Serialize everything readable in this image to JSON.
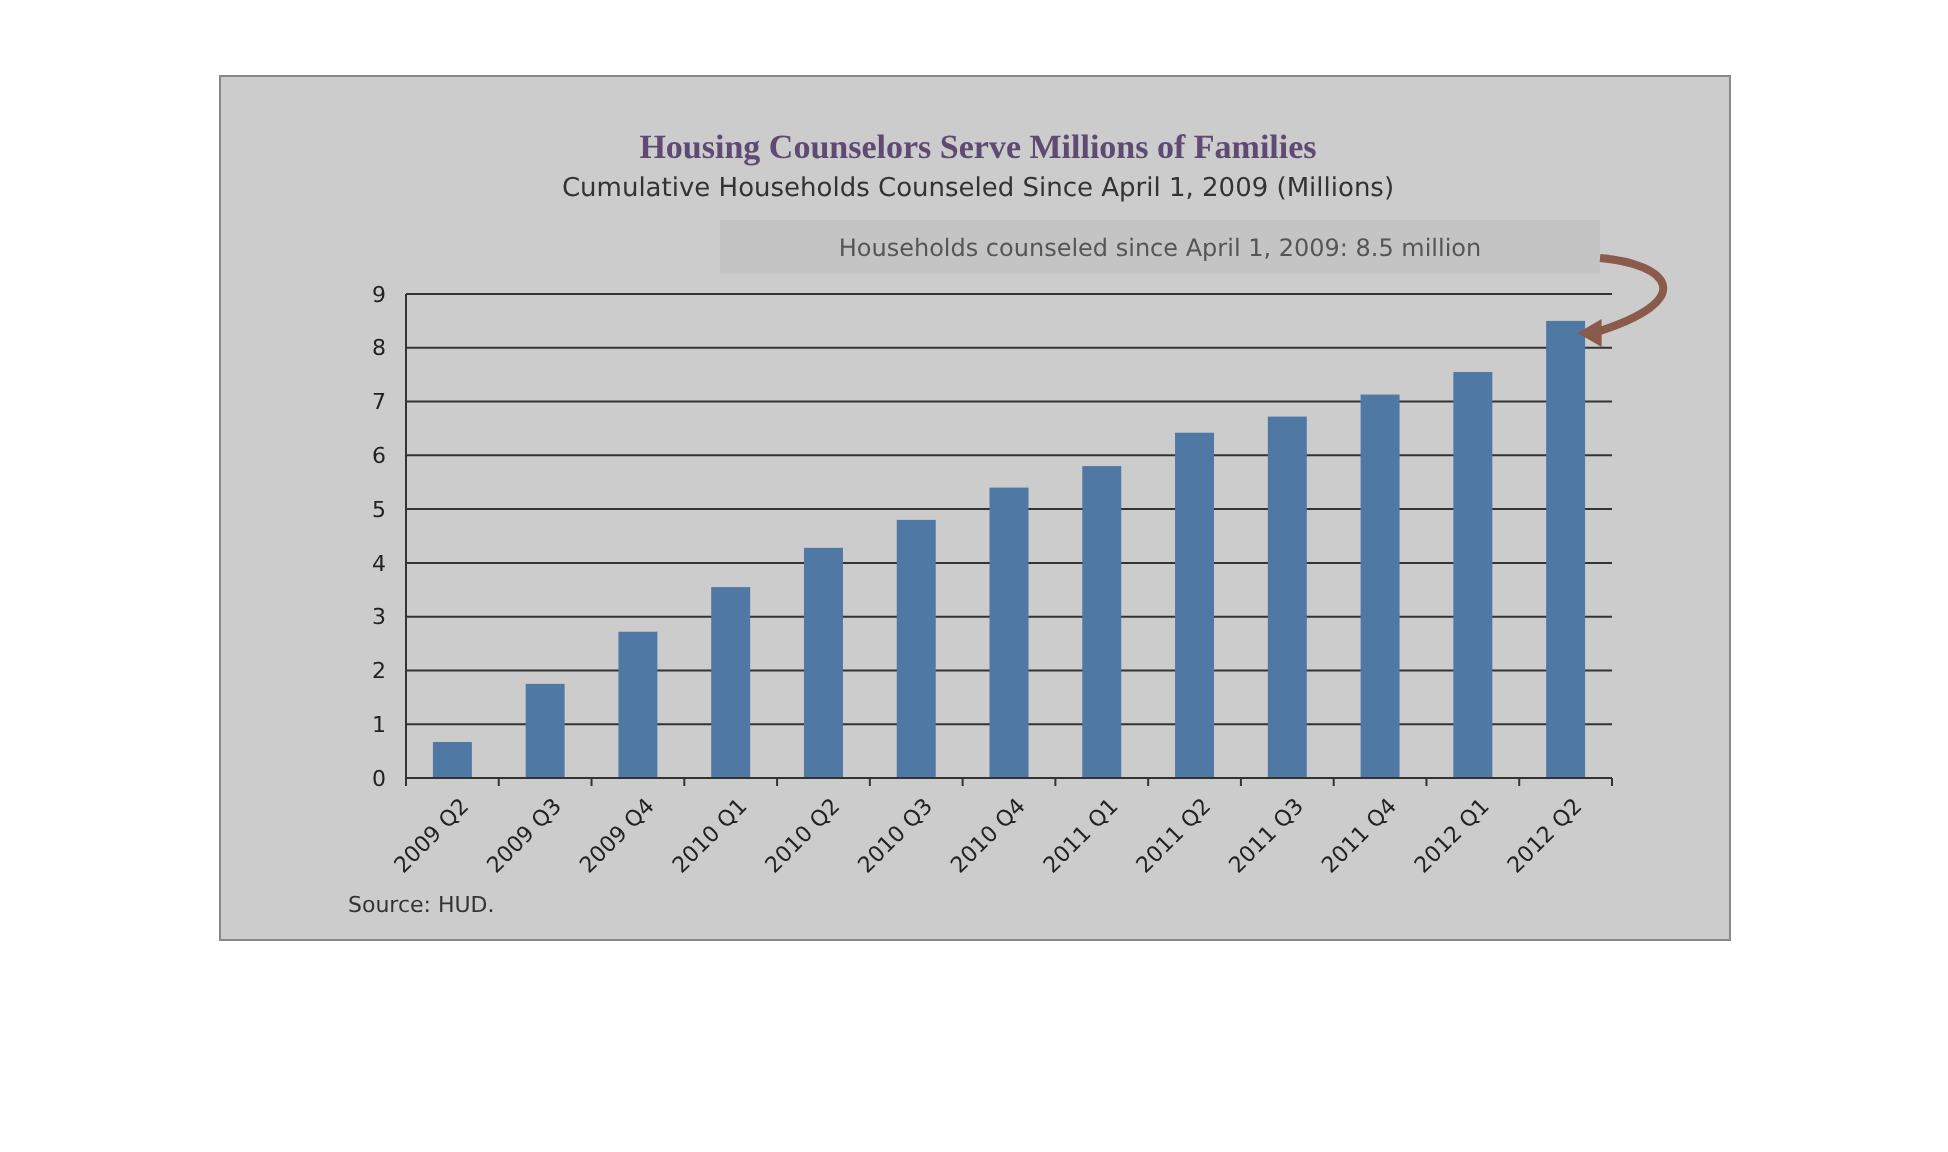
{
  "chart_data": {
    "type": "bar",
    "title": "Housing Counselors Serve Millions of Families",
    "subtitle": "Cumulative Households Counseled Since April 1, 2009 (Millions)",
    "categories": [
      "2009 Q2",
      "2009 Q3",
      "2009 Q4",
      "2010 Q1",
      "2010 Q2",
      "2010 Q3",
      "2010 Q4",
      "2011 Q1",
      "2011 Q2",
      "2011 Q3",
      "2011 Q4",
      "2012 Q1",
      "2012 Q2"
    ],
    "values": [
      0.67,
      1.75,
      2.72,
      3.55,
      4.28,
      4.8,
      5.4,
      5.8,
      6.42,
      6.72,
      7.13,
      7.55,
      8.5
    ],
    "color": "#4f78a4",
    "ylim": [
      0,
      9
    ],
    "yticks": [
      0,
      1,
      2,
      3,
      4,
      5,
      6,
      7,
      8,
      9
    ],
    "grid": "y",
    "annotations": [
      "Households counseled  since  April 1, 2009: 8.5 million",
      "Source:  HUD."
    ]
  }
}
